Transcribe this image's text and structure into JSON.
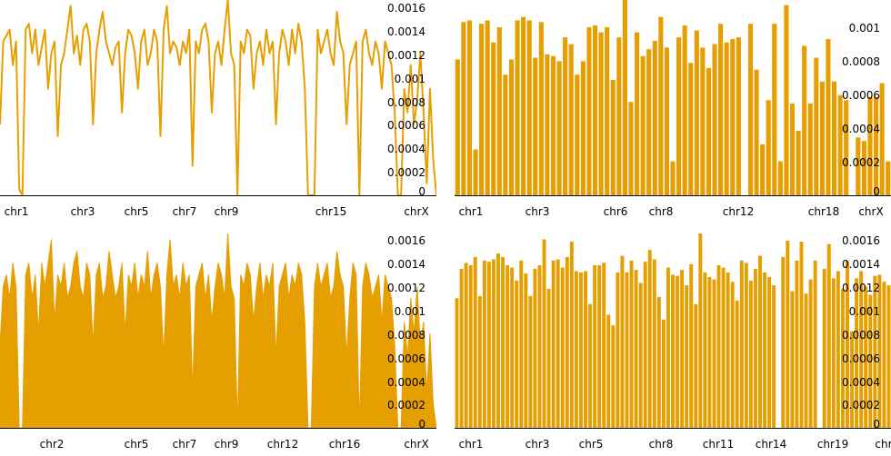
{
  "colors": {
    "series": "#E69F00",
    "axis": "#000000",
    "background": "#FFFFFF"
  },
  "chart_data": [
    {
      "type": "line",
      "title": "",
      "xlabel": "",
      "ylabel": "",
      "x_tick_labels": [
        "chr1",
        "chr3",
        "chr5",
        "chr7",
        "chr9",
        "chr15",
        "chrX"
      ],
      "y_tick_labels": [
        "0.0016",
        "0.0014",
        "0.0012",
        "0.001",
        "0.0008",
        "0.0006",
        "0.0004",
        "0.0002",
        "0"
      ],
      "ylim": [
        0,
        0.00165
      ],
      "y_axis_side": "right",
      "legend": "none",
      "grid": false,
      "values": [
        0.0006,
        0.0013,
        0.00135,
        0.0014,
        0.0011,
        0.0013,
        5e-05,
        0.0,
        0.0014,
        0.00145,
        0.0012,
        0.0014,
        0.0011,
        0.00125,
        0.0014,
        0.0009,
        0.0012,
        0.0013,
        0.0005,
        0.0011,
        0.0012,
        0.0014,
        0.0016,
        0.0012,
        0.00135,
        0.0011,
        0.0014,
        0.00145,
        0.0013,
        0.0006,
        0.0012,
        0.0014,
        0.00155,
        0.0013,
        0.0012,
        0.0011,
        0.00125,
        0.0013,
        0.0007,
        0.0012,
        0.0014,
        0.00135,
        0.0012,
        0.0009,
        0.0013,
        0.0014,
        0.0011,
        0.0012,
        0.0014,
        0.0013,
        0.0005,
        0.0014,
        0.0016,
        0.0012,
        0.0013,
        0.00125,
        0.0011,
        0.0013,
        0.0012,
        0.0014,
        0.00025,
        0.0013,
        0.0012,
        0.0014,
        0.00145,
        0.0013,
        0.0007,
        0.0012,
        0.0013,
        0.0011,
        0.0014,
        0.00165,
        0.0012,
        0.0011,
        0.0,
        0.0013,
        0.0012,
        0.0014,
        0.00135,
        0.0009,
        0.0012,
        0.0013,
        0.0011,
        0.0014,
        0.0012,
        0.0013,
        0.0006,
        0.0012,
        0.0014,
        0.0013,
        0.0011,
        0.0014,
        0.0012,
        0.00145,
        0.0013,
        0.0009,
        0.0,
        0.0,
        0.0,
        0.0014,
        0.0012,
        0.0013,
        0.0014,
        0.0012,
        0.0011,
        0.00155,
        0.0013,
        0.0012,
        0.0006,
        0.0011,
        0.0012,
        0.0013,
        0.0,
        0.0013,
        0.0014,
        0.0012,
        0.0011,
        0.0013,
        0.0012,
        0.0009,
        0.0013,
        0.0012,
        0.0011,
        0.0007,
        0.0,
        0.0,
        0.0009,
        0.0007,
        0.0011,
        0.0006,
        0.0008,
        0.0012,
        0.0007,
        0.0001,
        0.0009,
        0.0003,
        0.0
      ]
    },
    {
      "type": "bar",
      "title": "",
      "xlabel": "",
      "ylabel": "",
      "x_tick_labels": [
        "chr1",
        "chr3",
        "chr6",
        "chr8",
        "chr12",
        "chr18",
        "chrX"
      ],
      "y_tick_labels": [
        "0.001",
        "0.0008",
        "0.0006",
        "0.0004",
        "0.0002",
        "0"
      ],
      "ylim": [
        0,
        0.00115
      ],
      "y_axis_side": "right",
      "legend": "none",
      "grid": false,
      "values": [
        0.0008,
        0.00102,
        0.00103,
        0.00027,
        0.00101,
        0.00103,
        0.0009,
        0.00099,
        0.00071,
        0.0008,
        0.00103,
        0.00105,
        0.00103,
        0.00081,
        0.00102,
        0.00083,
        0.00082,
        0.00079,
        0.00093,
        0.00089,
        0.00071,
        0.00079,
        0.00099,
        0.001,
        0.00096,
        0.00099,
        0.00068,
        0.00093,
        0.00118,
        0.00055,
        0.00096,
        0.00082,
        0.00086,
        0.00091,
        0.00105,
        0.00087,
        0.0002,
        0.00093,
        0.001,
        0.00078,
        0.00097,
        0.00087,
        0.00075,
        0.00089,
        0.00101,
        0.0009,
        0.00092,
        0.00093,
        0.0,
        0.00101,
        0.00074,
        0.0003,
        0.00056,
        0.00101,
        0.0002,
        0.00112,
        0.00054,
        0.00038,
        0.00088,
        0.00054,
        0.00081,
        0.00067,
        0.00092,
        0.00067,
        0.00059,
        0.00056,
        0.0,
        0.00034,
        0.00032,
        0.00058,
        0.00058,
        0.00066,
        0.0002
      ]
    },
    {
      "type": "area",
      "title": "",
      "xlabel": "",
      "ylabel": "",
      "x_tick_labels": [
        "chr2",
        "chr5",
        "chr7",
        "chr9",
        "chr12",
        "chr16",
        "chrX"
      ],
      "y_tick_labels": [
        "0.0016",
        "0.0014",
        "0.0012",
        "0.001",
        "0.0008",
        "0.0006",
        "0.0004",
        "0.0002",
        "0"
      ],
      "ylim": [
        0,
        0.00165
      ],
      "y_axis_side": "right",
      "legend": "none",
      "grid": false,
      "values": [
        0.0007,
        0.0012,
        0.0013,
        0.0011,
        0.0014,
        0.0012,
        0.0,
        0.0,
        0.0013,
        0.0014,
        0.0011,
        0.0013,
        0.0008,
        0.0014,
        0.0012,
        0.0014,
        0.0016,
        0.0009,
        0.0013,
        0.0012,
        0.0014,
        0.0011,
        0.0012,
        0.0014,
        0.0015,
        0.0012,
        0.0011,
        0.0014,
        0.0013,
        0.0007,
        0.0013,
        0.0014,
        0.0011,
        0.0012,
        0.0015,
        0.0013,
        0.0011,
        0.0012,
        0.0014,
        0.0008,
        0.0013,
        0.0012,
        0.0014,
        0.0011,
        0.0013,
        0.0012,
        0.0015,
        0.0011,
        0.0013,
        0.0014,
        0.0012,
        0.0006,
        0.0013,
        0.0016,
        0.0012,
        0.0013,
        0.0011,
        0.0014,
        0.0012,
        0.0013,
        0.0003,
        0.0012,
        0.0013,
        0.0014,
        0.0011,
        0.0013,
        0.0009,
        0.0012,
        0.0014,
        0.0013,
        0.0011,
        0.00165,
        0.0012,
        0.0011,
        0.0,
        0.0013,
        0.0012,
        0.0014,
        0.0013,
        0.0009,
        0.0012,
        0.0014,
        0.0011,
        0.0013,
        0.0012,
        0.0014,
        0.0006,
        0.0012,
        0.0013,
        0.0014,
        0.0011,
        0.0013,
        0.0012,
        0.0014,
        0.0013,
        0.0009,
        0.0,
        0.0,
        0.0012,
        0.0014,
        0.0012,
        0.0013,
        0.0014,
        0.0011,
        0.0012,
        0.0015,
        0.0013,
        0.0012,
        0.0006,
        0.0011,
        0.0014,
        0.0013,
        0.0,
        0.0012,
        0.0014,
        0.0013,
        0.0011,
        0.0012,
        0.0013,
        0.0009,
        0.0013,
        0.0012,
        0.0011,
        0.0007,
        0.0,
        0.0,
        0.0009,
        0.0006,
        0.0011,
        0.0008,
        0.0012,
        0.0007,
        0.0009,
        0.0003,
        0.0008,
        0.0002,
        0.0
      ]
    },
    {
      "type": "bar",
      "title": "",
      "xlabel": "",
      "ylabel": "",
      "x_tick_labels": [
        "chr1",
        "chr3",
        "chr5",
        "chr8",
        "chr11",
        "chr14",
        "chr19",
        "chr"
      ],
      "y_tick_labels": [
        "0.0016",
        "0.0014",
        "0.0012",
        "0.001",
        "0.0008",
        "0.0006",
        "0.0004",
        "0.0002",
        "0"
      ],
      "ylim": [
        0,
        0.00165
      ],
      "y_axis_side": "right",
      "legend": "none",
      "grid": false,
      "values": [
        0.0011,
        0.00135,
        0.0014,
        0.00138,
        0.00145,
        0.00112,
        0.00142,
        0.00141,
        0.00143,
        0.00148,
        0.00145,
        0.00138,
        0.00136,
        0.00125,
        0.00142,
        0.00131,
        0.00112,
        0.00135,
        0.00138,
        0.0016,
        0.00118,
        0.00142,
        0.00143,
        0.00136,
        0.00145,
        0.00158,
        0.00133,
        0.00132,
        0.00133,
        0.00105,
        0.00138,
        0.00138,
        0.0014,
        0.00096,
        0.00087,
        0.00132,
        0.00146,
        0.00132,
        0.00142,
        0.00134,
        0.00123,
        0.00141,
        0.00151,
        0.00143,
        0.00111,
        0.00092,
        0.00136,
        0.0013,
        0.00129,
        0.00134,
        0.00121,
        0.00139,
        0.00105,
        0.00166,
        0.00132,
        0.00128,
        0.00126,
        0.00138,
        0.00136,
        0.00132,
        0.00124,
        0.00108,
        0.00142,
        0.0014,
        0.00125,
        0.00135,
        0.00146,
        0.00132,
        0.00128,
        0.00121,
        0.0,
        0.00145,
        0.00159,
        0.00116,
        0.00142,
        0.00158,
        0.00114,
        0.00126,
        0.00142,
        0.0,
        0.00135,
        0.00156,
        0.00127,
        0.00133,
        0.00118,
        0.00142,
        0.00082,
        0.00127,
        0.00133,
        0.0012,
        0.00113,
        0.00129,
        0.0013,
        0.00124,
        0.00121
      ]
    }
  ]
}
